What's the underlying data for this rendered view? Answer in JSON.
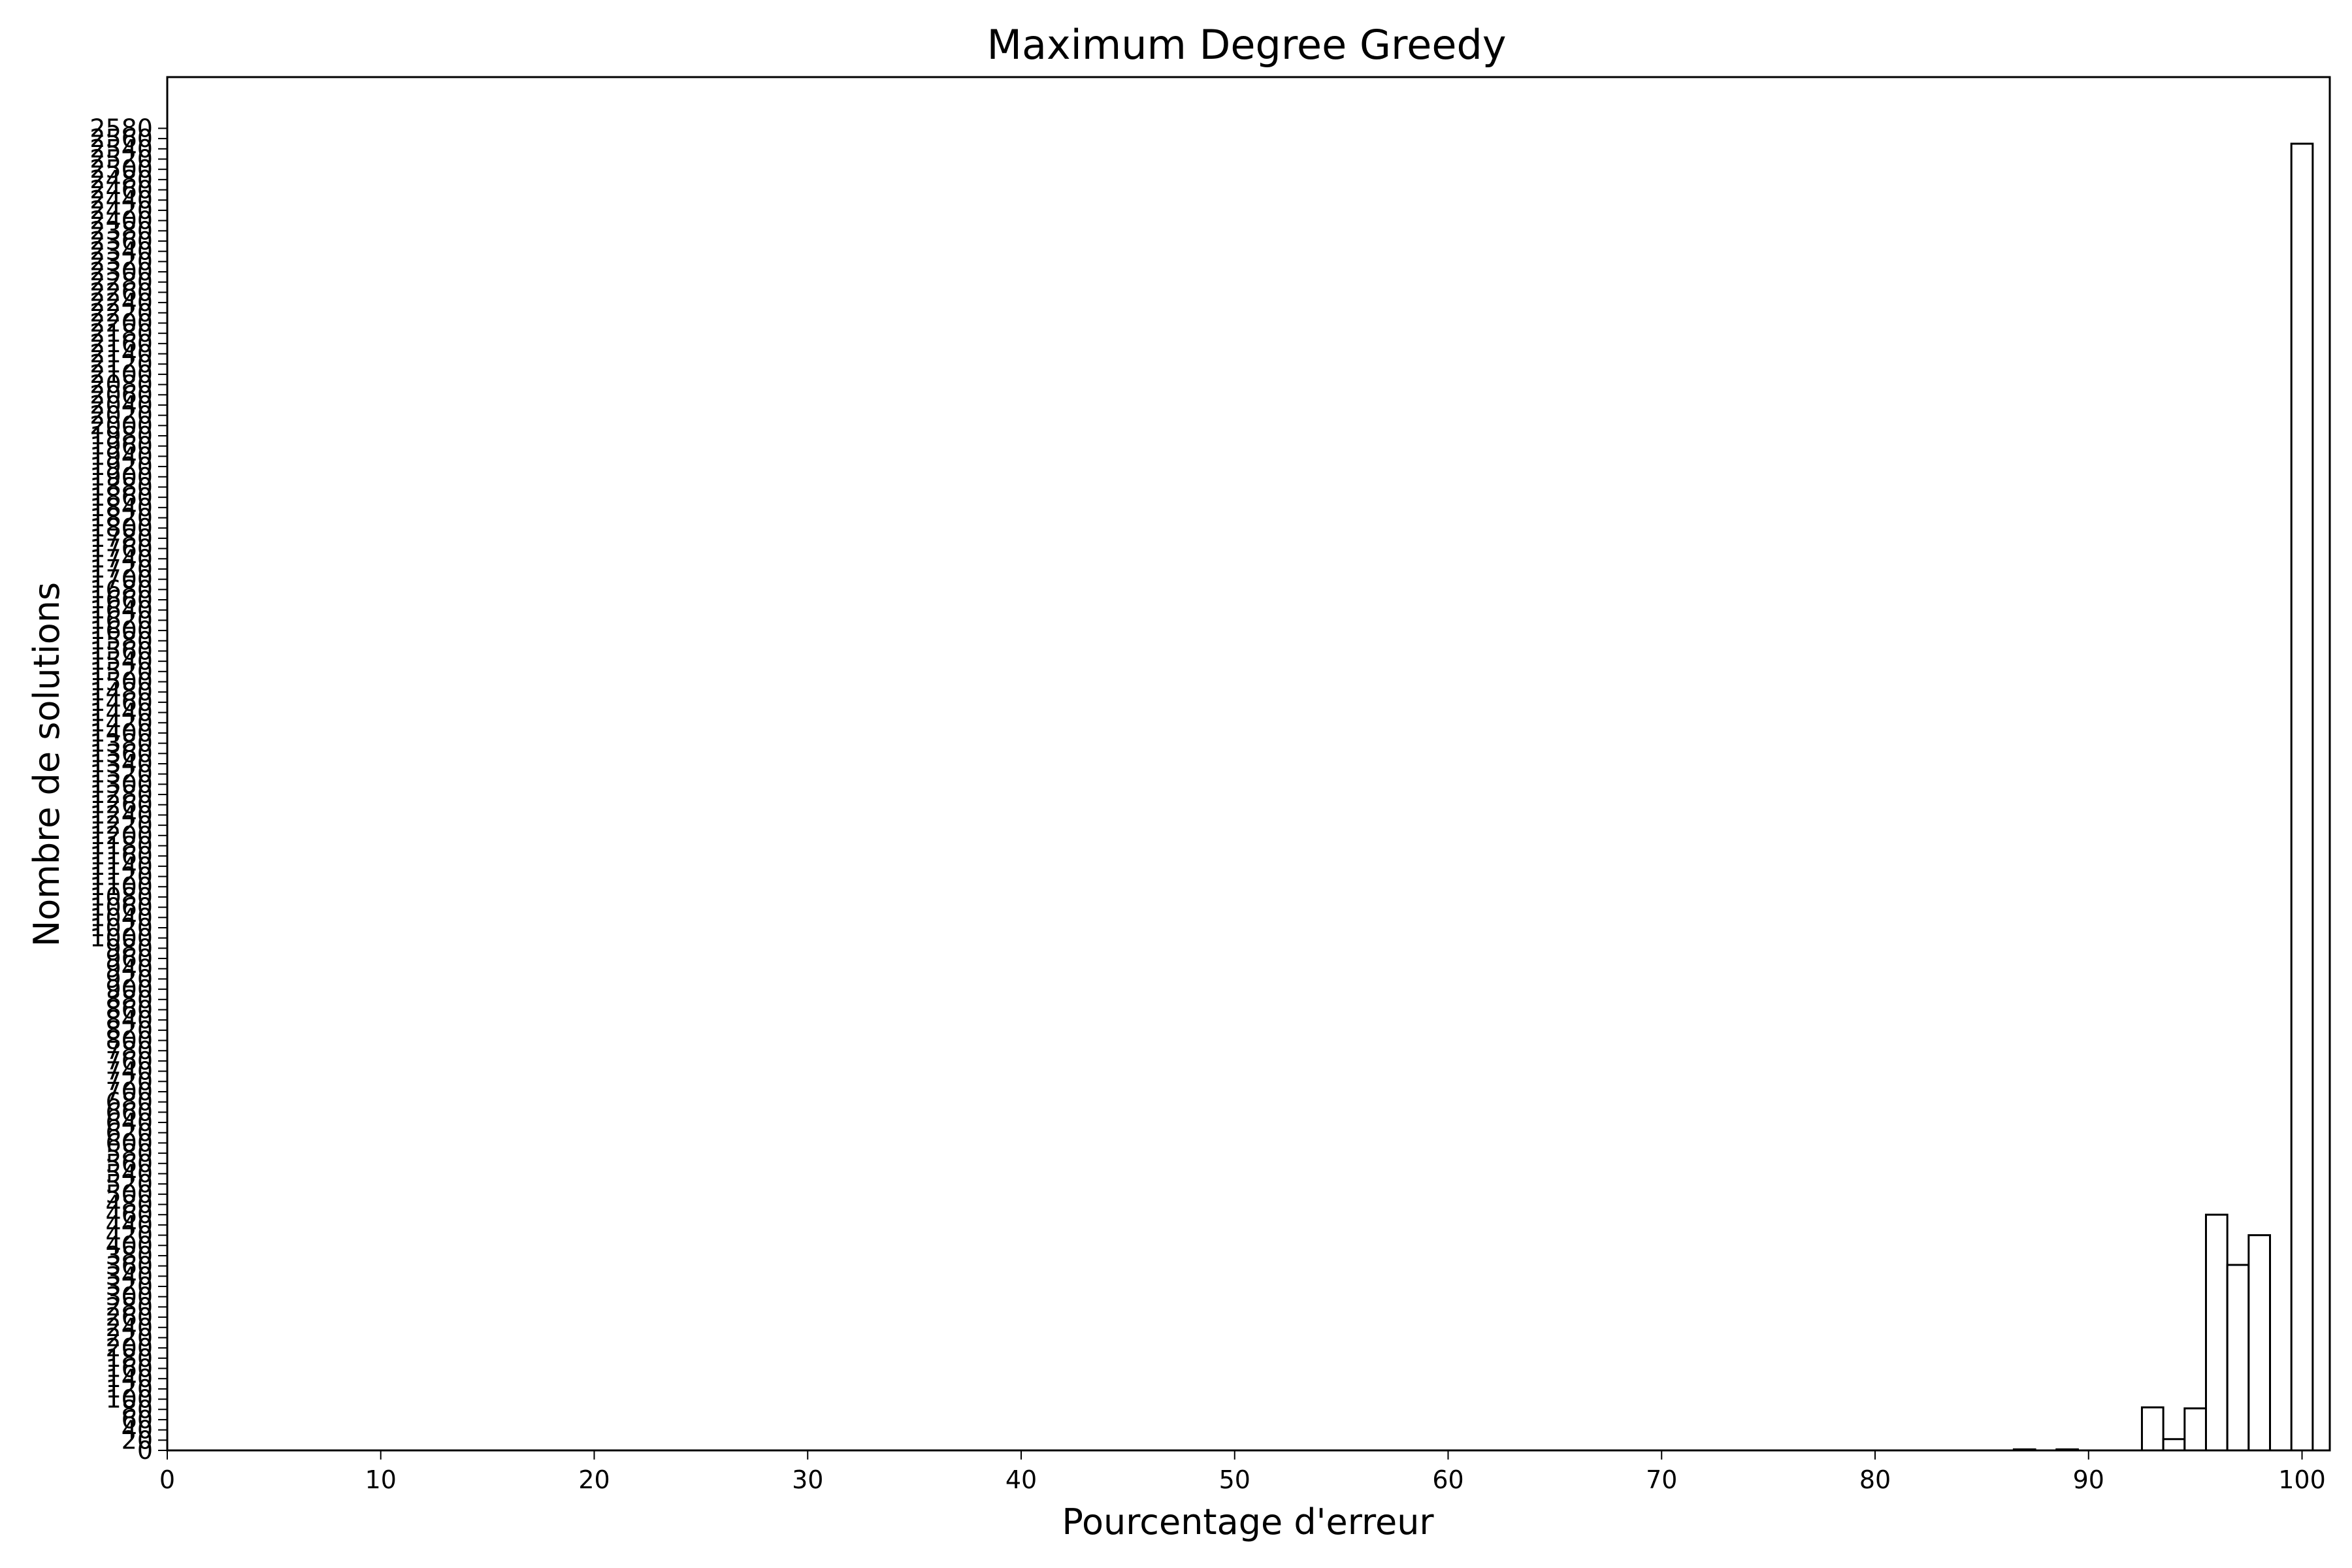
{
  "chart_data": {
    "type": "bar",
    "title": "Maximum Degree Greedy",
    "xlabel": "Pourcentage d'erreur",
    "ylabel": "Nombre de solutions",
    "xlim": [
      0,
      101.3
    ],
    "ylim": [
      0,
      2680
    ],
    "xticks": [
      0,
      10,
      20,
      30,
      40,
      50,
      60,
      70,
      80,
      90,
      100
    ],
    "yticks": [
      0,
      20,
      40,
      60,
      80,
      100,
      120,
      140,
      160,
      180,
      200,
      220,
      240,
      260,
      280,
      300,
      320,
      340,
      360,
      380,
      400,
      420,
      440,
      460,
      480,
      500,
      520,
      540,
      560,
      580,
      600,
      620,
      640,
      660,
      680,
      700,
      720,
      740,
      760,
      780,
      800,
      820,
      840,
      860,
      880,
      900,
      920,
      940,
      960,
      980,
      1000,
      1020,
      1040,
      1060,
      1080,
      1100,
      1120,
      1140,
      1160,
      1180,
      1200,
      1220,
      1240,
      1260,
      1280,
      1300,
      1320,
      1340,
      1360,
      1380,
      1400,
      1420,
      1440,
      1460,
      1480,
      1500,
      1520,
      1540,
      1560,
      1580,
      1600,
      1620,
      1640,
      1660,
      1680,
      1700,
      1720,
      1740,
      1760,
      1780,
      1800,
      1820,
      1840,
      1860,
      1880,
      1900,
      1920,
      1940,
      1960,
      1980,
      2000,
      2020,
      2040,
      2060,
      2080,
      2100,
      2120,
      2140,
      2160,
      2180,
      2200,
      2220,
      2240,
      2260,
      2280,
      2300,
      2320,
      2340,
      2360,
      2380,
      2400,
      2420,
      2440,
      2460,
      2480,
      2500,
      2520,
      2540,
      2560,
      2580
    ],
    "bar_width": 1,
    "fill": "#ffffff",
    "edge_color": "#000000",
    "grid": false,
    "bars": [
      {
        "x": 87,
        "value": 2
      },
      {
        "x": 89,
        "value": 2
      },
      {
        "x": 93,
        "value": 84
      },
      {
        "x": 94,
        "value": 22
      },
      {
        "x": 95,
        "value": 82
      },
      {
        "x": 96,
        "value": 460
      },
      {
        "x": 97,
        "value": 362
      },
      {
        "x": 98,
        "value": 420
      },
      {
        "x": 100,
        "value": 2550
      }
    ]
  }
}
